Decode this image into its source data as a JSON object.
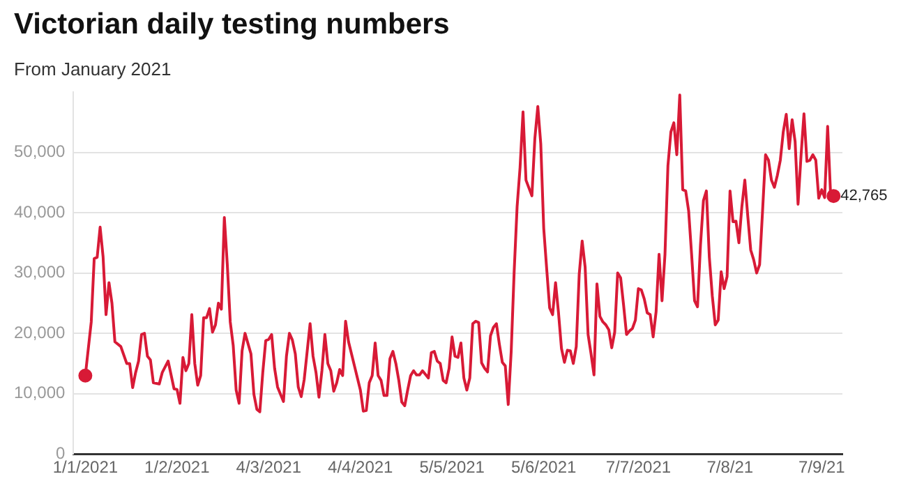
{
  "chart_data": {
    "type": "line",
    "title": "Victorian daily testing numbers",
    "subtitle": "From January 2021",
    "x": [
      "2021-01-01",
      "2021-01-03",
      "2021-01-04",
      "2021-01-05",
      "2021-01-06",
      "2021-01-07",
      "2021-01-08",
      "2021-01-09",
      "2021-01-10",
      "2021-01-11",
      "2021-01-13",
      "2021-01-15",
      "2021-01-16",
      "2021-01-17",
      "2021-01-18",
      "2021-01-19",
      "2021-01-20",
      "2021-01-21",
      "2021-01-22",
      "2021-01-23",
      "2021-01-24",
      "2021-01-26",
      "2021-01-27",
      "2021-01-29",
      "2021-01-31",
      "2021-02-01",
      "2021-02-02",
      "2021-02-03",
      "2021-02-04",
      "2021-02-05",
      "2021-02-06",
      "2021-02-07",
      "2021-02-08",
      "2021-02-09",
      "2021-02-10",
      "2021-02-11",
      "2021-02-12",
      "2021-02-13",
      "2021-02-14",
      "2021-02-15",
      "2021-02-16",
      "2021-02-17",
      "2021-02-18",
      "2021-02-19",
      "2021-02-20",
      "2021-02-21",
      "2021-02-22",
      "2021-02-23",
      "2021-02-24",
      "2021-02-26",
      "2021-02-27",
      "2021-02-28",
      "2021-03-01",
      "2021-03-02",
      "2021-03-03",
      "2021-03-04",
      "2021-03-05",
      "2021-03-06",
      "2021-03-07",
      "2021-03-09",
      "2021-03-10",
      "2021-03-11",
      "2021-03-12",
      "2021-03-13",
      "2021-03-14",
      "2021-03-15",
      "2021-03-16",
      "2021-03-18",
      "2021-03-19",
      "2021-03-20",
      "2021-03-21",
      "2021-03-22",
      "2021-03-23",
      "2021-03-24",
      "2021-03-25",
      "2021-03-26",
      "2021-03-27",
      "2021-03-28",
      "2021-03-29",
      "2021-03-30",
      "2021-03-31",
      "2021-04-02",
      "2021-04-04",
      "2021-04-05",
      "2021-04-06",
      "2021-04-07",
      "2021-04-08",
      "2021-04-09",
      "2021-04-10",
      "2021-04-11",
      "2021-04-12",
      "2021-04-13",
      "2021-04-14",
      "2021-04-15",
      "2021-04-16",
      "2021-04-17",
      "2021-04-18",
      "2021-04-19",
      "2021-04-20",
      "2021-04-21",
      "2021-04-22",
      "2021-04-23",
      "2021-04-24",
      "2021-04-25",
      "2021-04-27",
      "2021-04-28",
      "2021-04-29",
      "2021-04-30",
      "2021-05-01",
      "2021-05-02",
      "2021-05-03",
      "2021-05-04",
      "2021-05-05",
      "2021-05-06",
      "2021-05-07",
      "2021-05-08",
      "2021-05-09",
      "2021-05-10",
      "2021-05-11",
      "2021-05-12",
      "2021-05-13",
      "2021-05-14",
      "2021-05-15",
      "2021-05-16",
      "2021-05-17",
      "2021-05-18",
      "2021-05-19",
      "2021-05-20",
      "2021-05-21",
      "2021-05-22",
      "2021-05-23",
      "2021-05-24",
      "2021-05-25",
      "2021-05-26",
      "2021-05-27",
      "2021-05-28",
      "2021-05-29",
      "2021-05-30",
      "2021-05-31",
      "2021-06-01",
      "2021-06-02",
      "2021-06-03",
      "2021-06-04",
      "2021-06-05",
      "2021-06-06",
      "2021-06-07",
      "2021-06-08",
      "2021-06-09",
      "2021-06-10",
      "2021-06-11",
      "2021-06-12",
      "2021-06-13",
      "2021-06-14",
      "2021-06-15",
      "2021-06-16",
      "2021-06-17",
      "2021-06-18",
      "2021-06-19",
      "2021-06-20",
      "2021-06-21",
      "2021-06-22",
      "2021-06-23",
      "2021-06-24",
      "2021-06-25",
      "2021-06-26",
      "2021-06-27",
      "2021-06-28",
      "2021-06-29",
      "2021-06-30",
      "2021-07-01",
      "2021-07-02",
      "2021-07-03",
      "2021-07-04",
      "2021-07-05",
      "2021-07-06",
      "2021-07-07",
      "2021-07-08",
      "2021-07-09",
      "2021-07-10",
      "2021-07-11",
      "2021-07-12",
      "2021-07-13",
      "2021-07-14",
      "2021-07-15",
      "2021-07-16",
      "2021-07-17",
      "2021-07-18",
      "2021-07-19",
      "2021-07-20",
      "2021-07-21",
      "2021-07-22",
      "2021-07-23",
      "2021-07-24",
      "2021-07-25",
      "2021-07-26",
      "2021-07-27",
      "2021-07-28",
      "2021-07-29",
      "2021-07-30",
      "2021-07-31",
      "2021-08-01",
      "2021-08-02",
      "2021-08-03",
      "2021-08-04",
      "2021-08-05",
      "2021-08-06",
      "2021-08-07",
      "2021-08-08",
      "2021-08-09",
      "2021-08-10",
      "2021-08-11",
      "2021-08-12",
      "2021-08-13",
      "2021-08-14",
      "2021-08-15",
      "2021-08-16",
      "2021-08-17",
      "2021-08-18",
      "2021-08-19",
      "2021-08-20",
      "2021-08-21",
      "2021-08-22",
      "2021-08-23",
      "2021-08-24",
      "2021-08-25",
      "2021-08-26",
      "2021-08-27",
      "2021-08-28",
      "2021-08-29",
      "2021-08-30",
      "2021-08-31",
      "2021-09-01",
      "2021-09-02",
      "2021-09-03",
      "2021-09-04",
      "2021-09-05",
      "2021-09-06",
      "2021-09-07",
      "2021-09-08",
      "2021-09-09",
      "2021-09-10",
      "2021-09-11"
    ],
    "series": [
      {
        "color": "#d81a36",
        "values": [
          13000,
          21900,
          32400,
          32600,
          37600,
          32700,
          23100,
          28400,
          25000,
          18600,
          17800,
          15000,
          15000,
          11000,
          13500,
          15400,
          19800,
          20000,
          16200,
          15600,
          11800,
          11600,
          13500,
          15400,
          10800,
          10700,
          8400,
          16000,
          13800,
          15000,
          23100,
          15000,
          11400,
          13000,
          22600,
          22600,
          24100,
          20200,
          21400,
          25000,
          24000,
          39200,
          31400,
          21900,
          18000,
          10600,
          8400,
          17100,
          20000,
          16600,
          9900,
          7400,
          7000,
          13500,
          18800,
          19000,
          19800,
          14200,
          11100,
          8700,
          16200,
          20000,
          18900,
          16600,
          11100,
          9500,
          12300,
          21600,
          16200,
          13500,
          9400,
          13800,
          19800,
          15000,
          13800,
          10400,
          11800,
          14000,
          13000,
          22000,
          18600,
          14600,
          10600,
          7100,
          7200,
          11800,
          13000,
          18400,
          13000,
          12200,
          9700,
          9700,
          15800,
          17000,
          15000,
          12200,
          8600,
          8000,
          10600,
          13000,
          13800,
          13100,
          13100,
          13800,
          12600,
          16800,
          17000,
          15400,
          15000,
          12200,
          11800,
          14200,
          19400,
          16200,
          16000,
          18400,
          12600,
          10600,
          12600,
          21600,
          22000,
          21800,
          15100,
          14200,
          13600,
          19600,
          21000,
          21600,
          18200,
          15200,
          14600,
          8200,
          17000,
          30200,
          41000,
          47500,
          56700,
          45400,
          44100,
          42800,
          52300,
          57600,
          51400,
          37400,
          30700,
          24200,
          23100,
          28400,
          23400,
          17500,
          15200,
          17200,
          17100,
          15000,
          17800,
          29800,
          35300,
          31000,
          19800,
          16600,
          13100,
          28200,
          22800,
          21900,
          21400,
          20600,
          17600,
          20200,
          30000,
          29200,
          24700,
          19800,
          20400,
          20800,
          22200,
          27400,
          27200,
          25700,
          23400,
          23100,
          19400,
          23600,
          33100,
          25400,
          33100,
          47800,
          53400,
          54900,
          49600,
          59500,
          43800,
          43600,
          40300,
          33100,
          25400,
          24400,
          34600,
          42000,
          43600,
          32600,
          26200,
          21400,
          22200,
          30200,
          27400,
          29400,
          43600,
          38500,
          38600,
          35000,
          41000,
          45400,
          39400,
          33800,
          32200,
          30000,
          31400,
          40300,
          49600,
          48700,
          45400,
          44200,
          46200,
          48700,
          53400,
          56300,
          50600,
          55400,
          51800,
          41400,
          49400,
          56400,
          48500,
          48700,
          49600,
          48700,
          42400,
          43800,
          42500,
          54300,
          43000,
          42765
        ]
      }
    ],
    "xlim": [
      "2020-12-28",
      "2021-09-14"
    ],
    "xticks": [
      {
        "value": "2021-01-01",
        "label": "1/1/2021"
      },
      {
        "value": "2021-02-01",
        "label": "1/2/2021"
      },
      {
        "value": "2021-03-04",
        "label": "4/3/2021"
      },
      {
        "value": "2021-04-04",
        "label": "4/4/2021"
      },
      {
        "value": "2021-05-05",
        "label": "5/5/2021"
      },
      {
        "value": "2021-06-05",
        "label": "5/6/2021"
      },
      {
        "value": "2021-07-07",
        "label": "7/7/2021"
      },
      {
        "value": "2021-08-07",
        "label": "7/8/21"
      },
      {
        "value": "2021-09-07",
        "label": "7/9/21"
      }
    ],
    "ylim": [
      0,
      60000
    ],
    "yticks": [
      {
        "value": 0,
        "label": "0"
      },
      {
        "value": 10000,
        "label": "10,000"
      },
      {
        "value": 20000,
        "label": "20,000"
      },
      {
        "value": 30000,
        "label": "30,000"
      },
      {
        "value": 40000,
        "label": "40,000"
      },
      {
        "value": 50000,
        "label": "50,000"
      }
    ],
    "grid": "y",
    "legend": false,
    "annotations": [
      {
        "text": "42,765",
        "x": "2021-09-11",
        "y": 42765
      }
    ]
  }
}
